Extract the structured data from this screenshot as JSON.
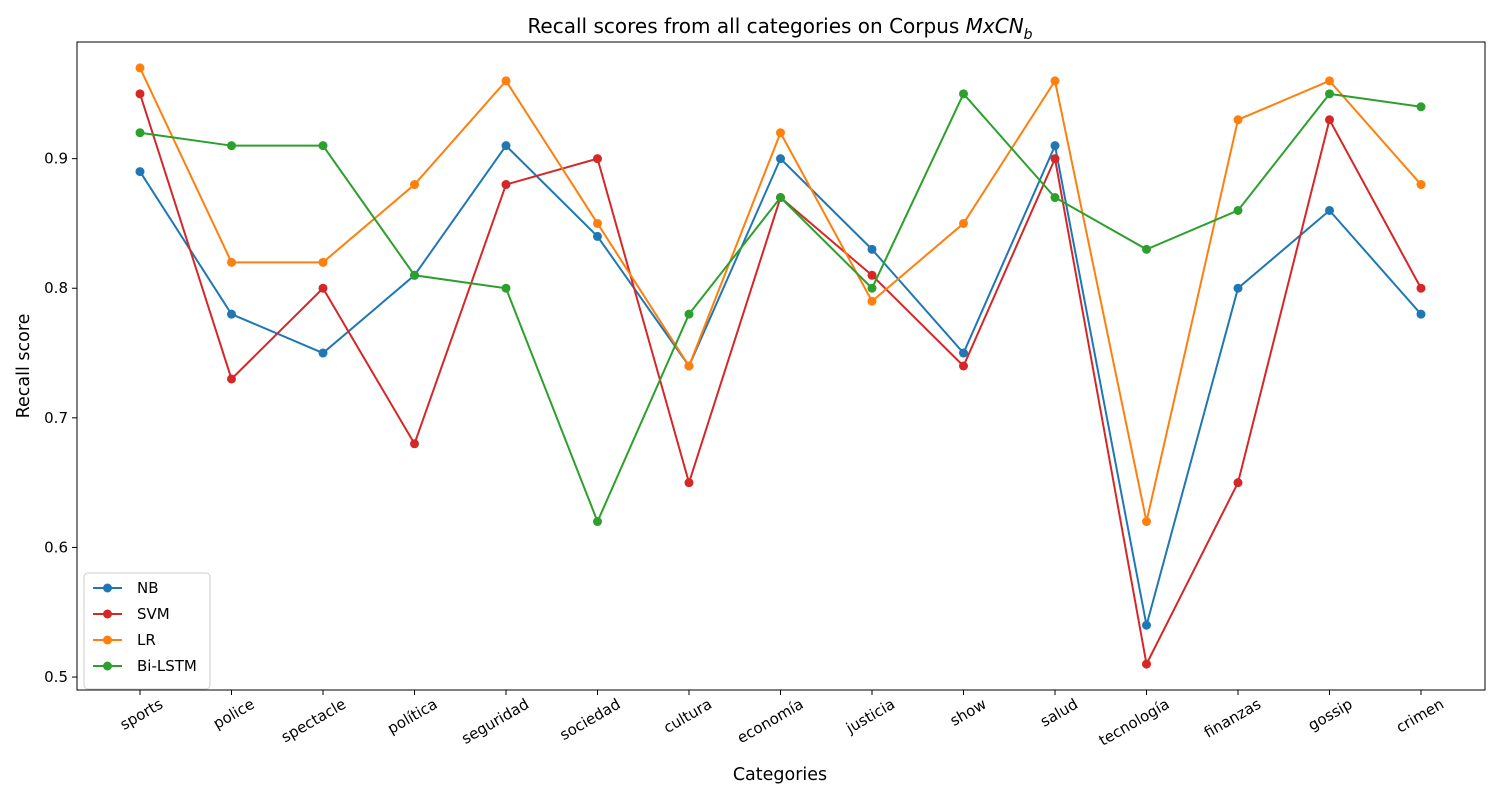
{
  "chart_data": {
    "type": "line",
    "title": "Recall scores from all categories on Corpus MxCN_b",
    "title_parts": {
      "prefix": "Recall scores from all categories on Corpus ",
      "math_main": "MxCN",
      "math_sub": "b"
    },
    "xlabel": "Categories",
    "ylabel": "Recall score",
    "ylim": [
      0.49,
      0.99
    ],
    "yticks": [
      0.5,
      0.6,
      0.7,
      0.8,
      0.9
    ],
    "ytick_labels": [
      "0.5",
      "0.6",
      "0.7",
      "0.8",
      "0.9"
    ],
    "grid": false,
    "legend_position": "lower-left",
    "categories": [
      "sports",
      "police",
      "spectacle",
      "política",
      "seguridad",
      "sociedad",
      "cultura",
      "economía",
      "justicia",
      "show",
      "salud",
      "tecnología",
      "finanzas",
      "gossip",
      "crimen"
    ],
    "series": [
      {
        "name": "NB",
        "color": "#1f77b4",
        "values": [
          0.89,
          0.78,
          0.75,
          0.81,
          0.91,
          0.84,
          0.74,
          0.9,
          0.83,
          0.75,
          0.91,
          0.54,
          0.8,
          0.86,
          0.78
        ]
      },
      {
        "name": "SVM",
        "color": "#d62728",
        "values": [
          0.95,
          0.73,
          0.8,
          0.68,
          0.88,
          0.9,
          0.65,
          0.87,
          0.81,
          0.74,
          0.9,
          0.51,
          0.65,
          0.93,
          0.8
        ]
      },
      {
        "name": "LR",
        "color": "#ff7f0e",
        "values": [
          0.97,
          0.82,
          0.82,
          0.88,
          0.96,
          0.85,
          0.74,
          0.92,
          0.79,
          0.85,
          0.96,
          0.62,
          0.93,
          0.96,
          0.88
        ]
      },
      {
        "name": "Bi-LSTM",
        "color": "#2ca02c",
        "values": [
          0.92,
          0.91,
          0.91,
          0.81,
          0.8,
          0.62,
          0.78,
          0.87,
          0.8,
          0.95,
          0.87,
          0.83,
          0.86,
          0.95,
          0.94
        ]
      }
    ]
  }
}
